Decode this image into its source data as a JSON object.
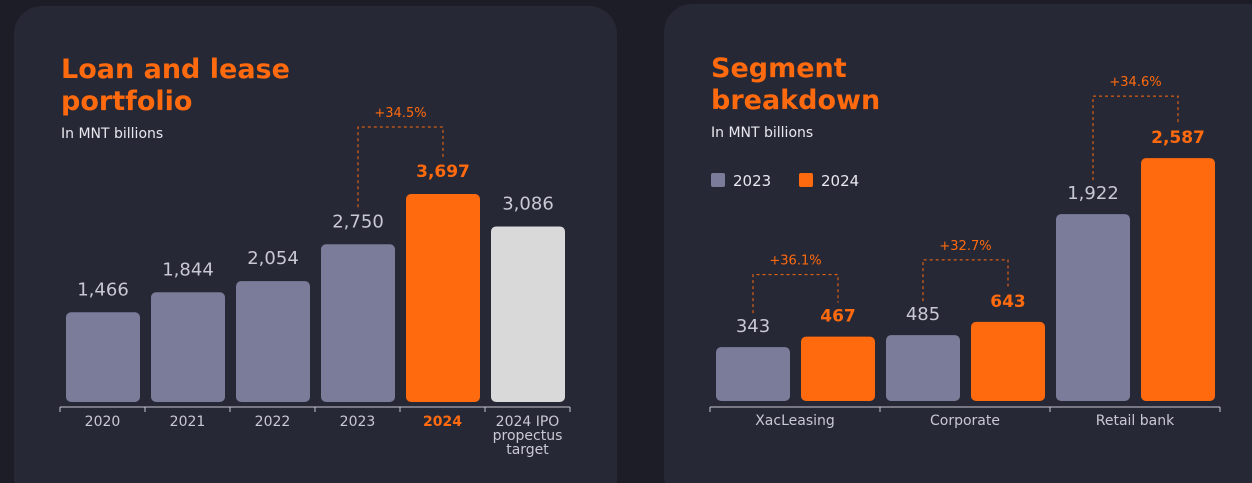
{
  "chart_data": [
    {
      "type": "bar",
      "title": "Loan and lease portfolio",
      "subtitle": "In MNT billions",
      "categories": [
        "2020",
        "2021",
        "2022",
        "2023",
        "2024",
        "2024 IPO propectus target"
      ],
      "values": [
        1466,
        1844,
        2054,
        2750,
        3697,
        3086
      ],
      "value_labels": [
        "1,466",
        "1,844",
        "2,054",
        "2,750",
        "3,697",
        "3,086"
      ],
      "colors": [
        "#7a7c99",
        "#7a7c99",
        "#7a7c99",
        "#7a7c99",
        "#ff6a0e",
        "#d9d9d9"
      ],
      "annotation": "+34.5%"
    },
    {
      "type": "grouped_bar",
      "title": "Segment breakdown",
      "subtitle": "In MNT billions",
      "categories": [
        "XacLeasing",
        "Corporate",
        "Retail bank"
      ],
      "series": [
        {
          "name": "2023",
          "color": "#7a7c99",
          "values": [
            343,
            485,
            1922
          ],
          "value_labels": [
            "343",
            "485",
            "1,922"
          ]
        },
        {
          "name": "2024",
          "color": "#ff6a0e",
          "values": [
            467,
            643,
            2587
          ],
          "value_labels": [
            "467",
            "643",
            "2,587"
          ]
        }
      ],
      "annotations": [
        "+36.1%",
        "+32.7%",
        "+34.6%"
      ]
    }
  ]
}
